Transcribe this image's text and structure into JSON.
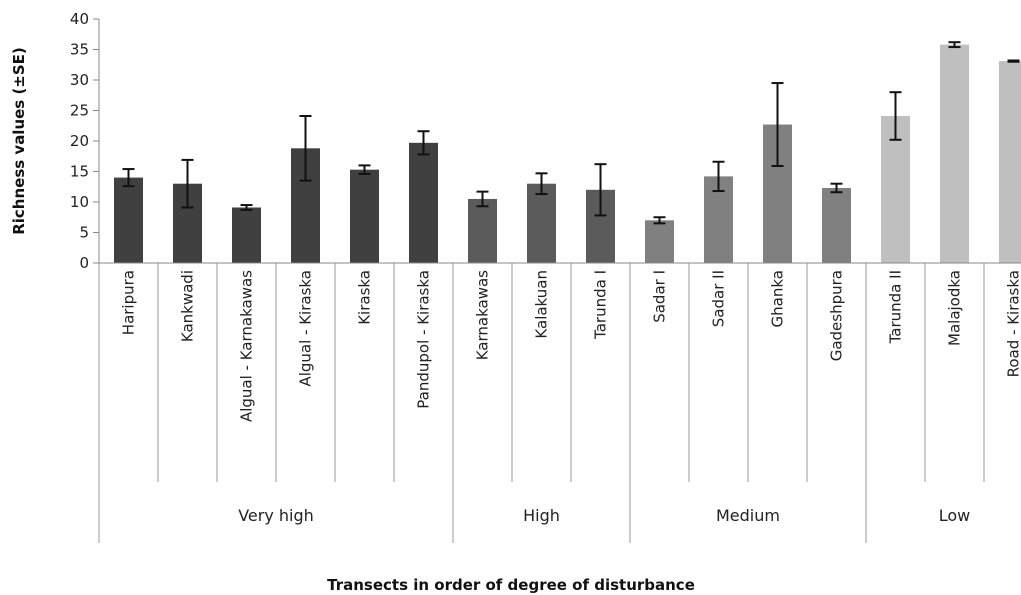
{
  "chart_data": {
    "type": "bar",
    "title": "",
    "xlabel": "Transects in order of degree of disturbance",
    "ylabel": "Richness values (±SE)",
    "ylim": [
      0,
      40
    ],
    "yticks": [
      0,
      5,
      10,
      15,
      20,
      25,
      30,
      35,
      40
    ],
    "grid": false,
    "legend": "none",
    "categories": [
      "Haripura",
      "Kankwadi",
      "Algual - Karnakawas",
      "Algual - Kiraska",
      "Kiraska",
      "Pandupol - Kiraska",
      "Karnakawas",
      "Kalakuan",
      "Tarunda I",
      "Sadar I",
      "Sadar II",
      "Ghanka",
      "Gadeshpura",
      "Tarunda II",
      "Malajodka",
      "Road - Kiraska"
    ],
    "values": [
      14,
      13,
      9.1,
      18.8,
      15.3,
      19.7,
      10.5,
      13,
      12,
      7,
      14.2,
      22.7,
      12.3,
      24.1,
      35.8,
      33.1
    ],
    "errors": [
      1.4,
      3.9,
      0.4,
      5.3,
      0.7,
      1.9,
      1.2,
      1.7,
      4.2,
      0.5,
      2.4,
      6.8,
      0.7,
      3.9,
      0.4,
      0.1
    ],
    "groups": [
      {
        "name": "Very high",
        "start": 0,
        "count": 6,
        "color": "#404040"
      },
      {
        "name": "High",
        "start": 6,
        "count": 3,
        "color": "#5b5b5b"
      },
      {
        "name": "Medium",
        "start": 9,
        "count": 4,
        "color": "#808080"
      },
      {
        "name": "Low",
        "start": 13,
        "count": 3,
        "color": "#bfbfbf"
      }
    ]
  }
}
